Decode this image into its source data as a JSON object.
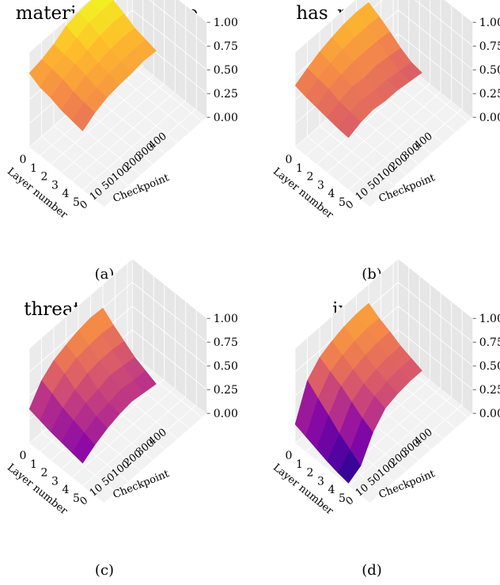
{
  "figure": {
    "charts": [
      {
        "title": "material_advantage",
        "caption": "(a)"
      },
      {
        "title": "has_mate_threat",
        "caption": "(b)"
      },
      {
        "title": "threat_opp_queen",
        "caption": "(c)"
      },
      {
        "title": "in_check",
        "caption": "(d)"
      }
    ]
  },
  "chart_data": [
    {
      "type": "surface",
      "title": "material_advantage",
      "caption": "(a)",
      "xlabel": "Checkpoint",
      "ylabel": "Layer number",
      "x_ticks": [
        "0",
        "10",
        "50",
        "100",
        "200",
        "300",
        "400"
      ],
      "y_ticks": [
        "0",
        "1",
        "2",
        "3",
        "4",
        "5"
      ],
      "z_ticks": [
        "0.00",
        "0.25",
        "0.50",
        "0.75",
        "1.00"
      ],
      "zlim": [
        0,
        1
      ],
      "colormap": "plasma",
      "z": [
        [
          0.78,
          0.81,
          0.86,
          0.94,
          0.97,
          0.98,
          0.99
        ],
        [
          0.72,
          0.8,
          0.84,
          0.9,
          0.95,
          0.96,
          0.96
        ],
        [
          0.7,
          0.78,
          0.83,
          0.86,
          0.9,
          0.92,
          0.91
        ],
        [
          0.66,
          0.74,
          0.8,
          0.82,
          0.85,
          0.86,
          0.85
        ],
        [
          0.64,
          0.72,
          0.76,
          0.8,
          0.81,
          0.82,
          0.82
        ],
        [
          0.62,
          0.7,
          0.75,
          0.77,
          0.78,
          0.8,
          0.79
        ]
      ]
    },
    {
      "type": "surface",
      "title": "has_mate_threat",
      "caption": "(b)",
      "xlabel": "Checkpoint",
      "ylabel": "Layer number",
      "x_ticks": [
        "0",
        "10",
        "50",
        "100",
        "200",
        "300",
        "400"
      ],
      "y_ticks": [
        "0",
        "1",
        "2",
        "3",
        "4",
        "5"
      ],
      "z_ticks": [
        "0.00",
        "0.25",
        "0.50",
        "0.75",
        "1.00"
      ],
      "zlim": [
        0,
        1
      ],
      "colormap": "plasma",
      "z": [
        [
          0.65,
          0.72,
          0.78,
          0.82,
          0.85,
          0.86,
          0.85
        ],
        [
          0.62,
          0.7,
          0.75,
          0.78,
          0.8,
          0.8,
          0.79
        ],
        [
          0.6,
          0.68,
          0.72,
          0.74,
          0.74,
          0.74,
          0.72
        ],
        [
          0.58,
          0.64,
          0.68,
          0.66,
          0.68,
          0.66,
          0.64
        ],
        [
          0.56,
          0.62,
          0.64,
          0.62,
          0.62,
          0.6,
          0.58
        ],
        [
          0.55,
          0.6,
          0.62,
          0.6,
          0.6,
          0.58,
          0.56
        ]
      ]
    },
    {
      "type": "surface",
      "title": "threat_opp_queen",
      "caption": "(c)",
      "xlabel": "Checkpoint",
      "ylabel": "Layer number",
      "x_ticks": [
        "0",
        "10",
        "50",
        "100",
        "200",
        "300",
        "400"
      ],
      "y_ticks": [
        "0",
        "1",
        "2",
        "3",
        "4",
        "5"
      ],
      "z_ticks": [
        "0.00",
        "0.25",
        "0.50",
        "0.75",
        "1.00"
      ],
      "zlim": [
        0,
        1
      ],
      "colormap": "plasma",
      "z": [
        [
          0.36,
          0.55,
          0.65,
          0.7,
          0.74,
          0.76,
          0.75
        ],
        [
          0.33,
          0.5,
          0.6,
          0.65,
          0.67,
          0.68,
          0.66
        ],
        [
          0.3,
          0.44,
          0.52,
          0.58,
          0.6,
          0.6,
          0.58
        ],
        [
          0.28,
          0.4,
          0.47,
          0.5,
          0.54,
          0.52,
          0.5
        ],
        [
          0.26,
          0.36,
          0.42,
          0.45,
          0.48,
          0.46,
          0.45
        ],
        [
          0.24,
          0.32,
          0.38,
          0.42,
          0.44,
          0.42,
          0.4
        ]
      ]
    },
    {
      "type": "surface",
      "title": "in_check",
      "caption": "(d)",
      "xlabel": "Checkpoint",
      "ylabel": "Layer number",
      "x_ticks": [
        "0",
        "10",
        "50",
        "100",
        "200",
        "300",
        "400"
      ],
      "y_ticks": [
        "0",
        "1",
        "2",
        "3",
        "4",
        "5"
      ],
      "z_ticks": [
        "0.00",
        "0.25",
        "0.50",
        "0.75",
        "1.00"
      ],
      "zlim": [
        0,
        1
      ],
      "colormap": "plasma",
      "z": [
        [
          0.2,
          0.55,
          0.68,
          0.74,
          0.78,
          0.8,
          0.8
        ],
        [
          0.16,
          0.45,
          0.62,
          0.68,
          0.72,
          0.74,
          0.73
        ],
        [
          0.12,
          0.36,
          0.56,
          0.62,
          0.66,
          0.68,
          0.68
        ],
        [
          0.08,
          0.26,
          0.48,
          0.56,
          0.6,
          0.62,
          0.62
        ],
        [
          0.05,
          0.18,
          0.4,
          0.52,
          0.56,
          0.58,
          0.58
        ],
        [
          0.03,
          0.1,
          0.34,
          0.48,
          0.52,
          0.54,
          0.54
        ]
      ]
    }
  ]
}
